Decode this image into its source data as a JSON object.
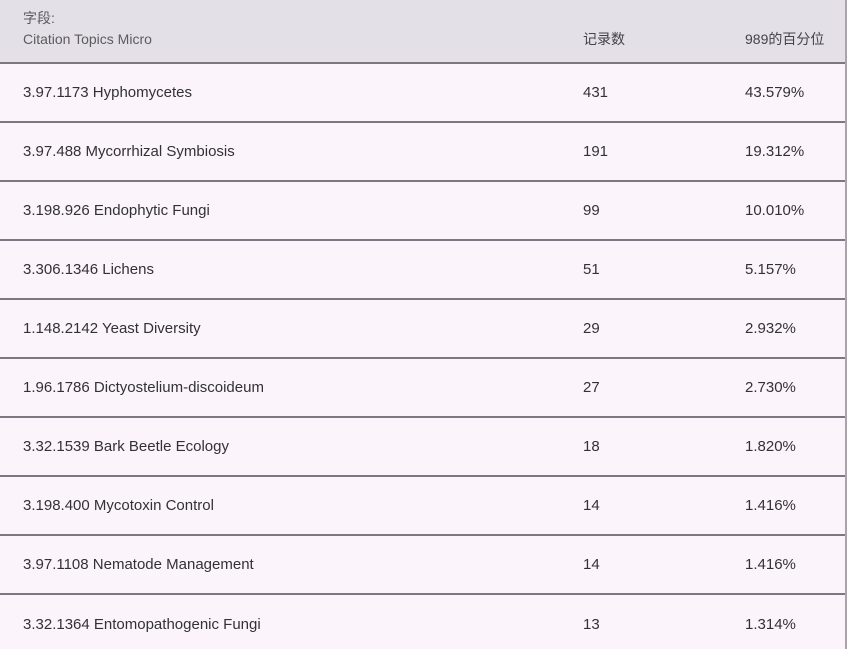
{
  "header": {
    "field_label": "字段:",
    "field_value": "Citation Topics Micro",
    "col_records": "记录数",
    "col_percentile": "989的百分位"
  },
  "rows": [
    {
      "topic": "3.97.1173 Hyphomycetes",
      "records": "431",
      "percentile": "43.579%"
    },
    {
      "topic": "3.97.488 Mycorrhizal Symbiosis",
      "records": "191",
      "percentile": "19.312%"
    },
    {
      "topic": "3.198.926 Endophytic Fungi",
      "records": "99",
      "percentile": "10.010%"
    },
    {
      "topic": "3.306.1346 Lichens",
      "records": "51",
      "percentile": "5.157%"
    },
    {
      "topic": "1.148.2142 Yeast Diversity",
      "records": "29",
      "percentile": "2.932%"
    },
    {
      "topic": "1.96.1786 Dictyostelium-discoideum",
      "records": "27",
      "percentile": "2.730%"
    },
    {
      "topic": "3.32.1539 Bark Beetle Ecology",
      "records": "18",
      "percentile": "1.820%"
    },
    {
      "topic": "3.198.400 Mycotoxin Control",
      "records": "14",
      "percentile": "1.416%"
    },
    {
      "topic": "3.97.1108 Nematode Management",
      "records": "14",
      "percentile": "1.416%"
    },
    {
      "topic": "3.32.1364 Entomopathogenic Fungi",
      "records": "13",
      "percentile": "1.314%"
    }
  ],
  "colors": {
    "header_bg": "#e3e1e7",
    "row_bg": "#fbf5fb",
    "divider": "#7e7683",
    "right_edge": "#aaa3ac",
    "header_text": "#5e5a5e",
    "row_text": "#333135"
  }
}
